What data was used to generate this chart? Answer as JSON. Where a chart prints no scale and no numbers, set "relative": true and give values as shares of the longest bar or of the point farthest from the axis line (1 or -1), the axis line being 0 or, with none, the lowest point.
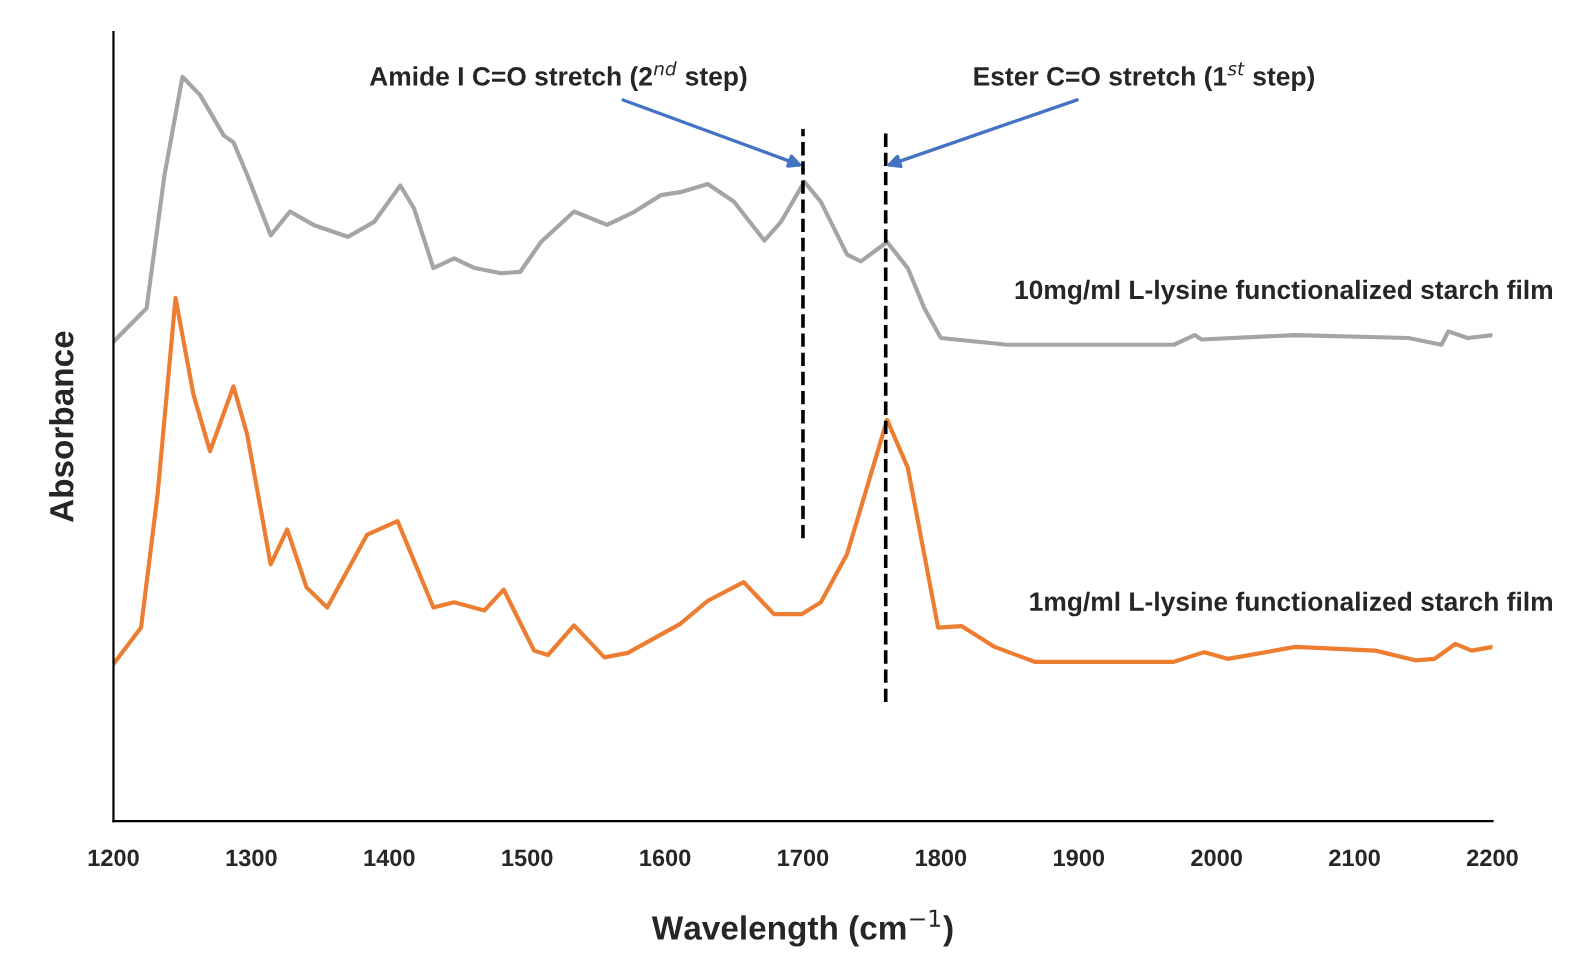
{
  "chart_data": {
    "type": "line",
    "relative": true,
    "xlabel": "Wavelength (cm$^{−1}$)",
    "ylabel": "Absorbance",
    "xlim": [
      1200,
      2200
    ],
    "xticks": [
      1200,
      1300,
      1400,
      1500,
      1600,
      1700,
      1800,
      1900,
      2000,
      2100,
      2200
    ],
    "grid": false,
    "legend": false,
    "line_style": "solid",
    "marker": "none",
    "series": [
      {
        "name": "10mg/ml L-lysine functionalized starch film",
        "color": "#a5a5a5",
        "x": [
          1200,
          1224,
          1237,
          1250,
          1263,
          1280,
          1287,
          1297,
          1314,
          1328,
          1345,
          1370,
          1389,
          1408,
          1418,
          1432,
          1447,
          1462,
          1481,
          1495,
          1510,
          1534,
          1558,
          1578,
          1597,
          1611,
          1631,
          1650,
          1672,
          1684,
          1701,
          1713,
          1732,
          1742,
          1761,
          1776,
          1788,
          1800,
          1848,
          1969,
          1984,
          1989,
          2057,
          2139,
          2163,
          2168,
          2182,
          2200
        ],
        "values": [
          0.644,
          0.689,
          0.868,
          1.0,
          0.975,
          0.921,
          0.912,
          0.868,
          0.787,
          0.819,
          0.801,
          0.785,
          0.805,
          0.854,
          0.823,
          0.743,
          0.756,
          0.743,
          0.736,
          0.738,
          0.778,
          0.819,
          0.801,
          0.819,
          0.841,
          0.845,
          0.856,
          0.832,
          0.78,
          0.805,
          0.859,
          0.832,
          0.761,
          0.752,
          0.778,
          0.743,
          0.689,
          0.649,
          0.64,
          0.64,
          0.653,
          0.647,
          0.653,
          0.649,
          0.64,
          0.658,
          0.649,
          0.653
        ]
      },
      {
        "name": "1mg/ml L-lysine functionalized starch film",
        "color": "#ed7d31",
        "x": [
          1200,
          1220,
          1232,
          1245,
          1258,
          1270,
          1287,
          1297,
          1314,
          1326,
          1340,
          1355,
          1384,
          1406,
          1432,
          1447,
          1469,
          1483,
          1505,
          1515,
          1534,
          1556,
          1573,
          1611,
          1631,
          1657,
          1679,
          1699,
          1713,
          1732,
          1761,
          1776,
          1798,
          1815,
          1839,
          1868,
          1969,
          1991,
          2008,
          2057,
          2115,
          2144,
          2158,
          2173,
          2185,
          2200
        ],
        "values": [
          0.211,
          0.26,
          0.439,
          0.703,
          0.573,
          0.497,
          0.584,
          0.519,
          0.345,
          0.392,
          0.314,
          0.287,
          0.385,
          0.403,
          0.287,
          0.294,
          0.283,
          0.311,
          0.229,
          0.223,
          0.263,
          0.22,
          0.226,
          0.265,
          0.296,
          0.321,
          0.278,
          0.278,
          0.294,
          0.359,
          0.539,
          0.475,
          0.26,
          0.262,
          0.234,
          0.214,
          0.214,
          0.227,
          0.218,
          0.234,
          0.229,
          0.216,
          0.218,
          0.238,
          0.229,
          0.234
        ]
      }
    ],
    "ref_lines": [
      {
        "axis": "x",
        "value": 1700,
        "color": "#000000",
        "line_style": "dashed"
      },
      {
        "axis": "x",
        "value": 1760,
        "color": "#000000",
        "line_style": "dashed"
      }
    ],
    "annotations": [
      {
        "text": "Amide I C=O stretch (2$^{nd}$ step)",
        "x": 1700,
        "y": 0.88
      },
      {
        "text": "Ester C=O stretch (1$^{st}$ step)",
        "x": 1760,
        "y": 0.88
      }
    ]
  }
}
